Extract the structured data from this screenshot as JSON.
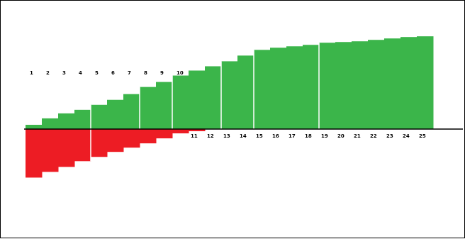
{
  "chart_data": {
    "type": "bar",
    "colors": {
      "positive": "#3bb54a",
      "negative": "#ed1c24",
      "axis": "#000000",
      "divider": "#ffffff"
    },
    "categories": [
      "1",
      "2",
      "3",
      "4",
      "5",
      "6",
      "7",
      "8",
      "9",
      "10",
      "11",
      "12",
      "13",
      "14",
      "15",
      "16",
      "17",
      "18",
      "19",
      "20",
      "21",
      "22",
      "23",
      "24",
      "25"
    ],
    "series": [
      {
        "values": [
          0.06,
          0.15,
          0.22,
          0.27,
          0.34,
          0.41,
          0.49,
          0.59,
          0.66,
          0.75,
          0.82,
          0.88,
          0.95,
          1.03,
          1.11,
          1.14,
          1.16,
          1.18,
          1.21,
          1.22,
          1.23,
          1.25,
          1.27,
          1.29,
          1.3
        ]
      },
      {
        "values": [
          -0.68,
          -0.6,
          -0.53,
          -0.45,
          -0.39,
          -0.32,
          -0.26,
          -0.2,
          -0.13,
          -0.06,
          -0.03,
          0,
          0,
          0,
          0,
          0,
          0,
          0,
          0,
          0,
          0,
          0,
          0,
          0,
          0
        ]
      }
    ],
    "label_rows": {
      "above": [
        "1",
        "2",
        "3",
        "4",
        "5",
        "6",
        "7",
        "8",
        "9",
        "10"
      ],
      "below": [
        "11",
        "12",
        "13",
        "14",
        "15",
        "16",
        "17",
        "18",
        "19",
        "20",
        "21",
        "22",
        "23",
        "24",
        "25"
      ]
    },
    "dividers_after": [
      4,
      7,
      9,
      12,
      14,
      18
    ],
    "negative_dividers_after": [
      4
    ],
    "ylim": [
      -0.9,
      1.6
    ],
    "grid": false,
    "legend": "none"
  }
}
